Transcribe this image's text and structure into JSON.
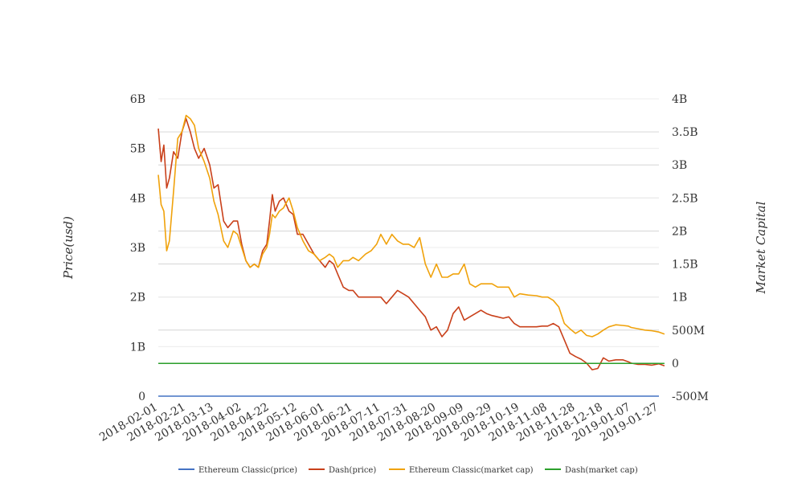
{
  "chart_data": {
    "type": "line",
    "title": "",
    "ylabel": "Price(usd)",
    "y2label": "Market Capital",
    "x_ticks": [
      "2018-02-01",
      "2018-02-21",
      "2018-03-13",
      "2018-04-02",
      "2018-04-22",
      "2018-05-12",
      "2018-06-01",
      "2018-06-21",
      "2018-07-11",
      "2018-07-31",
      "2018-08-20",
      "2018-09-09",
      "2018-09-29",
      "2018-10-19",
      "2018-11-08",
      "2018-11-28",
      "2018-12-18",
      "2019-01-07",
      "2019-01-27"
    ],
    "y_left": {
      "min": 0,
      "max": 6000000000,
      "ticks": [
        {
          "v": 0,
          "label": "0"
        },
        {
          "v": 1000000000,
          "label": "1B"
        },
        {
          "v": 2000000000,
          "label": "2B"
        },
        {
          "v": 3000000000,
          "label": "3B"
        },
        {
          "v": 4000000000,
          "label": "4B"
        },
        {
          "v": 5000000000,
          "label": "5B"
        },
        {
          "v": 6000000000,
          "label": "6B"
        }
      ]
    },
    "y_right": {
      "min": -500000000,
      "max": 4000000000,
      "ticks": [
        {
          "v": -500000000,
          "label": "-500M"
        },
        {
          "v": 0,
          "label": "0"
        },
        {
          "v": 500000000,
          "label": "500M"
        },
        {
          "v": 1000000000,
          "label": "1B"
        },
        {
          "v": 1500000000,
          "label": "1.5B"
        },
        {
          "v": 2000000000,
          "label": "2B"
        },
        {
          "v": 2500000000,
          "label": "2.5B"
        },
        {
          "v": 3000000000,
          "label": "3B"
        },
        {
          "v": 3500000000,
          "label": "3.5B"
        },
        {
          "v": 4000000000,
          "label": "4B"
        }
      ]
    },
    "grid": true,
    "legend_position": "bottom",
    "series": [
      {
        "name": "Ethereum Classic(price)",
        "axis": "left",
        "color": "#4472c4",
        "points": [
          [
            "2018-02-01",
            15
          ],
          [
            "2018-02-21",
            32
          ],
          [
            "2018-03-13",
            25
          ],
          [
            "2018-04-02",
            16
          ],
          [
            "2018-04-22",
            16
          ],
          [
            "2018-05-12",
            16
          ],
          [
            "2018-06-01",
            14
          ],
          [
            "2018-06-21",
            12
          ],
          [
            "2018-07-11",
            16
          ],
          [
            "2018-07-31",
            15
          ],
          [
            "2018-08-20",
            12
          ],
          [
            "2018-09-09",
            11
          ],
          [
            "2018-09-29",
            11
          ],
          [
            "2018-10-19",
            10
          ],
          [
            "2018-11-08",
            9
          ],
          [
            "2018-11-28",
            6
          ],
          [
            "2018-12-18",
            5
          ],
          [
            "2019-01-07",
            6
          ],
          [
            "2019-01-27",
            4
          ]
        ]
      },
      {
        "name": "Dash(price)",
        "axis": "right",
        "color": "#c9401a",
        "points": [
          [
            "2018-02-01",
            3550000000
          ],
          [
            "2018-02-03",
            3050000000
          ],
          [
            "2018-02-05",
            3300000000
          ],
          [
            "2018-02-07",
            2650000000
          ],
          [
            "2018-02-09",
            2800000000
          ],
          [
            "2018-02-12",
            3200000000
          ],
          [
            "2018-02-15",
            3100000000
          ],
          [
            "2018-02-18",
            3500000000
          ],
          [
            "2018-02-21",
            3700000000
          ],
          [
            "2018-02-24",
            3500000000
          ],
          [
            "2018-02-27",
            3250000000
          ],
          [
            "2018-03-02",
            3100000000
          ],
          [
            "2018-03-06",
            3250000000
          ],
          [
            "2018-03-10",
            3000000000
          ],
          [
            "2018-03-13",
            2650000000
          ],
          [
            "2018-03-16",
            2700000000
          ],
          [
            "2018-03-20",
            2150000000
          ],
          [
            "2018-03-23",
            2050000000
          ],
          [
            "2018-03-27",
            2150000000
          ],
          [
            "2018-03-30",
            2150000000
          ],
          [
            "2018-04-02",
            1800000000
          ],
          [
            "2018-04-05",
            1550000000
          ],
          [
            "2018-04-08",
            1450000000
          ],
          [
            "2018-04-11",
            1500000000
          ],
          [
            "2018-04-14",
            1450000000
          ],
          [
            "2018-04-17",
            1700000000
          ],
          [
            "2018-04-20",
            1800000000
          ],
          [
            "2018-04-22",
            2150000000
          ],
          [
            "2018-04-24",
            2550000000
          ],
          [
            "2018-04-26",
            2300000000
          ],
          [
            "2018-04-29",
            2450000000
          ],
          [
            "2018-05-02",
            2500000000
          ],
          [
            "2018-05-06",
            2300000000
          ],
          [
            "2018-05-09",
            2250000000
          ],
          [
            "2018-05-12",
            1950000000
          ],
          [
            "2018-05-16",
            1950000000
          ],
          [
            "2018-05-20",
            1800000000
          ],
          [
            "2018-05-24",
            1650000000
          ],
          [
            "2018-05-28",
            1550000000
          ],
          [
            "2018-06-01",
            1450000000
          ],
          [
            "2018-06-04",
            1550000000
          ],
          [
            "2018-06-07",
            1500000000
          ],
          [
            "2018-06-10",
            1350000000
          ],
          [
            "2018-06-14",
            1150000000
          ],
          [
            "2018-06-18",
            1100000000
          ],
          [
            "2018-06-21",
            1100000000
          ],
          [
            "2018-06-25",
            1000000000
          ],
          [
            "2018-06-30",
            1000000000
          ],
          [
            "2018-07-04",
            1000000000
          ],
          [
            "2018-07-08",
            1000000000
          ],
          [
            "2018-07-11",
            1000000000
          ],
          [
            "2018-07-15",
            900000000
          ],
          [
            "2018-07-19",
            1000000000
          ],
          [
            "2018-07-23",
            1100000000
          ],
          [
            "2018-07-27",
            1050000000
          ],
          [
            "2018-07-31",
            1000000000
          ],
          [
            "2018-08-04",
            900000000
          ],
          [
            "2018-08-08",
            800000000
          ],
          [
            "2018-08-12",
            700000000
          ],
          [
            "2018-08-16",
            500000000
          ],
          [
            "2018-08-20",
            550000000
          ],
          [
            "2018-08-24",
            400000000
          ],
          [
            "2018-08-28",
            500000000
          ],
          [
            "2018-09-01",
            750000000
          ],
          [
            "2018-09-05",
            850000000
          ],
          [
            "2018-09-09",
            650000000
          ],
          [
            "2018-09-13",
            700000000
          ],
          [
            "2018-09-17",
            750000000
          ],
          [
            "2018-09-21",
            800000000
          ],
          [
            "2018-09-25",
            750000000
          ],
          [
            "2018-09-29",
            720000000
          ],
          [
            "2018-10-03",
            700000000
          ],
          [
            "2018-10-07",
            680000000
          ],
          [
            "2018-10-11",
            700000000
          ],
          [
            "2018-10-15",
            600000000
          ],
          [
            "2018-10-19",
            550000000
          ],
          [
            "2018-10-25",
            550000000
          ],
          [
            "2018-10-31",
            550000000
          ],
          [
            "2018-11-04",
            560000000
          ],
          [
            "2018-11-08",
            560000000
          ],
          [
            "2018-11-12",
            600000000
          ],
          [
            "2018-11-16",
            550000000
          ],
          [
            "2018-11-20",
            350000000
          ],
          [
            "2018-11-24",
            150000000
          ],
          [
            "2018-11-28",
            100000000
          ],
          [
            "2018-12-02",
            60000000
          ],
          [
            "2018-12-06",
            0
          ],
          [
            "2018-12-10",
            -100000000
          ],
          [
            "2018-12-14",
            -80000000
          ],
          [
            "2018-12-18",
            80000000
          ],
          [
            "2018-12-22",
            30000000
          ],
          [
            "2018-12-27",
            50000000
          ],
          [
            "2019-01-01",
            50000000
          ],
          [
            "2019-01-05",
            20000000
          ],
          [
            "2019-01-07",
            0
          ],
          [
            "2019-01-12",
            -20000000
          ],
          [
            "2019-01-17",
            -20000000
          ],
          [
            "2019-01-22",
            -30000000
          ],
          [
            "2019-01-27",
            -10000000
          ],
          [
            "2019-01-31",
            -40000000
          ]
        ]
      },
      {
        "name": "Ethereum Classic(market cap)",
        "axis": "right",
        "color": "#f0a20b",
        "points": [
          [
            "2018-02-01",
            2850000000
          ],
          [
            "2018-02-03",
            2400000000
          ],
          [
            "2018-02-05",
            2300000000
          ],
          [
            "2018-02-07",
            1700000000
          ],
          [
            "2018-02-09",
            1850000000
          ],
          [
            "2018-02-12",
            2600000000
          ],
          [
            "2018-02-15",
            3400000000
          ],
          [
            "2018-02-18",
            3500000000
          ],
          [
            "2018-02-21",
            3750000000
          ],
          [
            "2018-02-24",
            3700000000
          ],
          [
            "2018-02-27",
            3600000000
          ],
          [
            "2018-03-02",
            3250000000
          ],
          [
            "2018-03-06",
            3050000000
          ],
          [
            "2018-03-10",
            2800000000
          ],
          [
            "2018-03-13",
            2450000000
          ],
          [
            "2018-03-16",
            2250000000
          ],
          [
            "2018-03-20",
            1850000000
          ],
          [
            "2018-03-23",
            1750000000
          ],
          [
            "2018-03-27",
            2000000000
          ],
          [
            "2018-03-30",
            1950000000
          ],
          [
            "2018-04-02",
            1750000000
          ],
          [
            "2018-04-05",
            1550000000
          ],
          [
            "2018-04-08",
            1450000000
          ],
          [
            "2018-04-11",
            1500000000
          ],
          [
            "2018-04-14",
            1450000000
          ],
          [
            "2018-04-17",
            1650000000
          ],
          [
            "2018-04-20",
            1750000000
          ],
          [
            "2018-04-22",
            1950000000
          ],
          [
            "2018-04-24",
            2250000000
          ],
          [
            "2018-04-26",
            2200000000
          ],
          [
            "2018-04-29",
            2300000000
          ],
          [
            "2018-05-02",
            2350000000
          ],
          [
            "2018-05-06",
            2500000000
          ],
          [
            "2018-05-09",
            2300000000
          ],
          [
            "2018-05-12",
            2050000000
          ],
          [
            "2018-05-16",
            1850000000
          ],
          [
            "2018-05-20",
            1700000000
          ],
          [
            "2018-05-24",
            1650000000
          ],
          [
            "2018-05-28",
            1550000000
          ],
          [
            "2018-06-01",
            1600000000
          ],
          [
            "2018-06-04",
            1650000000
          ],
          [
            "2018-06-07",
            1600000000
          ],
          [
            "2018-06-10",
            1450000000
          ],
          [
            "2018-06-14",
            1550000000
          ],
          [
            "2018-06-18",
            1550000000
          ],
          [
            "2018-06-21",
            1600000000
          ],
          [
            "2018-06-25",
            1550000000
          ],
          [
            "2018-06-30",
            1650000000
          ],
          [
            "2018-07-04",
            1700000000
          ],
          [
            "2018-07-08",
            1800000000
          ],
          [
            "2018-07-11",
            1950000000
          ],
          [
            "2018-07-15",
            1800000000
          ],
          [
            "2018-07-19",
            1950000000
          ],
          [
            "2018-07-23",
            1850000000
          ],
          [
            "2018-07-27",
            1800000000
          ],
          [
            "2018-07-31",
            1800000000
          ],
          [
            "2018-08-04",
            1750000000
          ],
          [
            "2018-08-08",
            1900000000
          ],
          [
            "2018-08-12",
            1500000000
          ],
          [
            "2018-08-16",
            1300000000
          ],
          [
            "2018-08-20",
            1500000000
          ],
          [
            "2018-08-24",
            1300000000
          ],
          [
            "2018-08-28",
            1300000000
          ],
          [
            "2018-09-01",
            1350000000
          ],
          [
            "2018-09-05",
            1350000000
          ],
          [
            "2018-09-09",
            1500000000
          ],
          [
            "2018-09-13",
            1200000000
          ],
          [
            "2018-09-17",
            1150000000
          ],
          [
            "2018-09-21",
            1200000000
          ],
          [
            "2018-09-25",
            1200000000
          ],
          [
            "2018-09-29",
            1200000000
          ],
          [
            "2018-10-03",
            1150000000
          ],
          [
            "2018-10-07",
            1150000000
          ],
          [
            "2018-10-11",
            1150000000
          ],
          [
            "2018-10-15",
            1000000000
          ],
          [
            "2018-10-19",
            1050000000
          ],
          [
            "2018-10-25",
            1030000000
          ],
          [
            "2018-10-31",
            1020000000
          ],
          [
            "2018-11-04",
            1000000000
          ],
          [
            "2018-11-08",
            1000000000
          ],
          [
            "2018-11-12",
            950000000
          ],
          [
            "2018-11-16",
            850000000
          ],
          [
            "2018-11-20",
            600000000
          ],
          [
            "2018-11-24",
            520000000
          ],
          [
            "2018-11-28",
            450000000
          ],
          [
            "2018-12-02",
            500000000
          ],
          [
            "2018-12-06",
            420000000
          ],
          [
            "2018-12-10",
            400000000
          ],
          [
            "2018-12-14",
            440000000
          ],
          [
            "2018-12-18",
            500000000
          ],
          [
            "2018-12-22",
            550000000
          ],
          [
            "2018-12-27",
            580000000
          ],
          [
            "2019-01-01",
            570000000
          ],
          [
            "2019-01-05",
            560000000
          ],
          [
            "2019-01-07",
            540000000
          ],
          [
            "2019-01-12",
            520000000
          ],
          [
            "2019-01-17",
            500000000
          ],
          [
            "2019-01-22",
            490000000
          ],
          [
            "2019-01-27",
            470000000
          ],
          [
            "2019-01-31",
            440000000
          ]
        ]
      },
      {
        "name": "Dash(market cap)",
        "axis": "left",
        "color": "#2ca02c",
        "points": [
          [
            "2018-02-01",
            660000000
          ],
          [
            "2018-02-21",
            660000000
          ],
          [
            "2018-03-13",
            660000000
          ],
          [
            "2018-04-02",
            660000000
          ],
          [
            "2018-04-22",
            660000000
          ],
          [
            "2018-05-12",
            660000000
          ],
          [
            "2018-06-01",
            660000000
          ],
          [
            "2018-06-21",
            660000000
          ],
          [
            "2018-07-11",
            660000000
          ],
          [
            "2018-07-31",
            660000000
          ],
          [
            "2018-08-20",
            660000000
          ],
          [
            "2018-09-09",
            660000000
          ],
          [
            "2018-09-29",
            660000000
          ],
          [
            "2018-10-19",
            660000000
          ],
          [
            "2018-11-08",
            660000000
          ],
          [
            "2018-11-28",
            660000000
          ],
          [
            "2018-12-18",
            660000000
          ],
          [
            "2019-01-07",
            660000000
          ],
          [
            "2019-01-27",
            660000000
          ],
          [
            "2019-01-31",
            660000000
          ]
        ]
      }
    ]
  }
}
